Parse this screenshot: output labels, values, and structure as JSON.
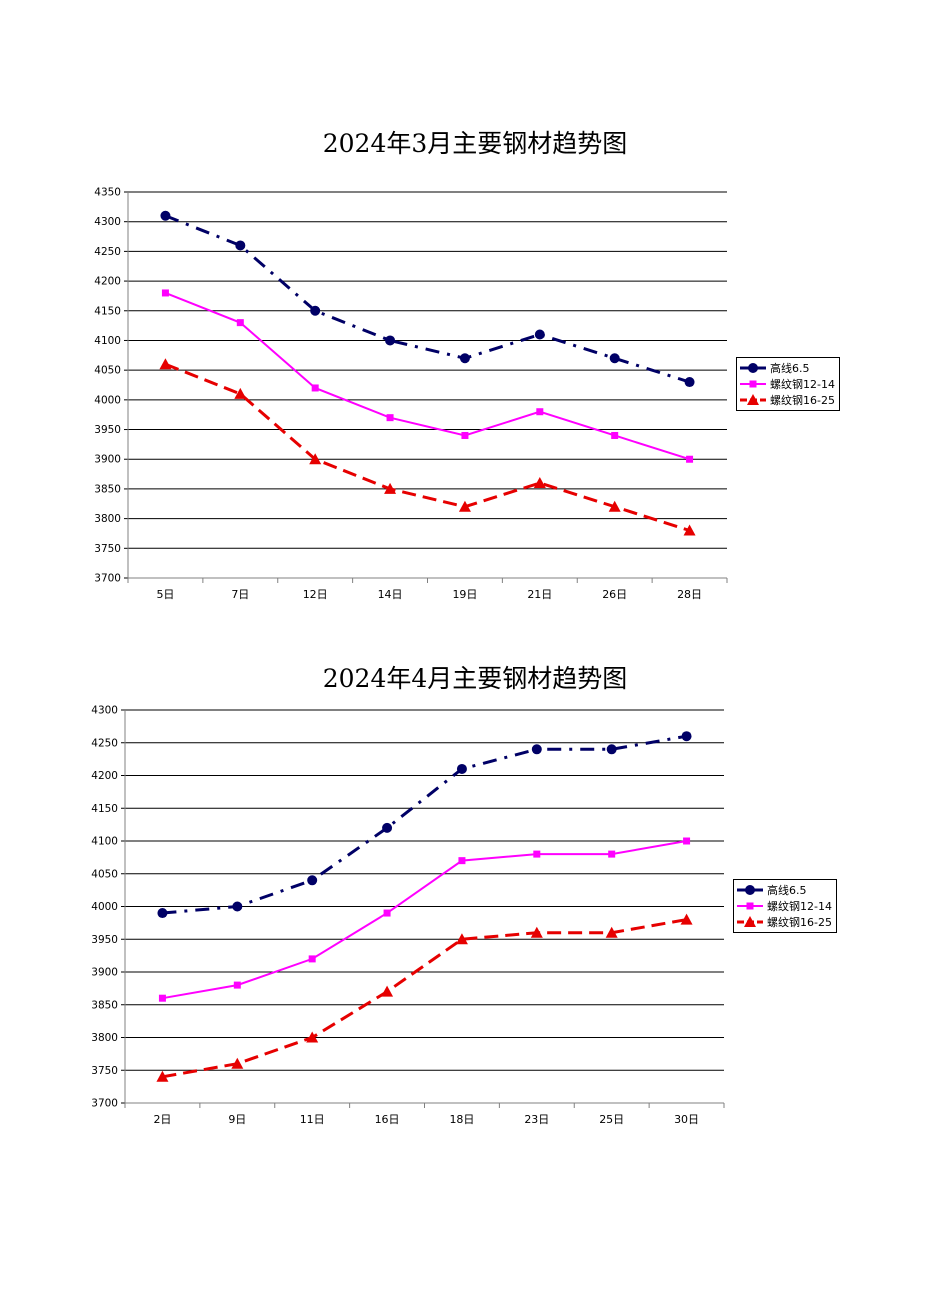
{
  "chart_data": [
    {
      "type": "line",
      "title": "2024年3月主要钢材趋势图",
      "categories": [
        "5日",
        "7日",
        "12日",
        "14日",
        "19日",
        "21日",
        "26日",
        "28日"
      ],
      "ylim": [
        3700,
        4350
      ],
      "yticks": [
        3700,
        3750,
        3800,
        3850,
        3900,
        3950,
        4000,
        4050,
        4100,
        4150,
        4200,
        4250,
        4300,
        4350
      ],
      "grid": true,
      "legend_position": "right",
      "series": [
        {
          "name": "高线6.5",
          "values": [
            4310,
            4260,
            4150,
            4100,
            4070,
            4110,
            4070,
            4030
          ],
          "color": "#000066",
          "marker": "circle",
          "dash": "dash-dot"
        },
        {
          "name": "螺纹钢12-14",
          "values": [
            4180,
            4130,
            4020,
            3970,
            3940,
            3980,
            3940,
            3900
          ],
          "color": "#ff00ff",
          "marker": "square",
          "dash": "solid"
        },
        {
          "name": "螺纹钢16-25",
          "values": [
            4060,
            4010,
            3900,
            3850,
            3820,
            3860,
            3820,
            3780
          ],
          "color": "#e60000",
          "marker": "triangle",
          "dash": "dash"
        }
      ]
    },
    {
      "type": "line",
      "title": "2024年4月主要钢材趋势图",
      "categories": [
        "2日",
        "9日",
        "11日",
        "16日",
        "18日",
        "23日",
        "25日",
        "30日"
      ],
      "ylim": [
        3700,
        4300
      ],
      "yticks": [
        3700,
        3750,
        3800,
        3850,
        3900,
        3950,
        4000,
        4050,
        4100,
        4150,
        4200,
        4250,
        4300
      ],
      "grid": true,
      "legend_position": "right",
      "series": [
        {
          "name": "高线6.5",
          "values": [
            3990,
            4000,
            4040,
            4120,
            4210,
            4240,
            4240,
            4260
          ],
          "color": "#000066",
          "marker": "circle",
          "dash": "dash-dot"
        },
        {
          "name": "螺纹钢12-14",
          "values": [
            3860,
            3880,
            3920,
            3990,
            4070,
            4080,
            4080,
            4100
          ],
          "color": "#ff00ff",
          "marker": "square",
          "dash": "solid"
        },
        {
          "name": "螺纹钢16-25",
          "values": [
            3740,
            3760,
            3800,
            3870,
            3950,
            3960,
            3960,
            3980
          ],
          "color": "#e60000",
          "marker": "triangle",
          "dash": "dash"
        }
      ]
    }
  ]
}
